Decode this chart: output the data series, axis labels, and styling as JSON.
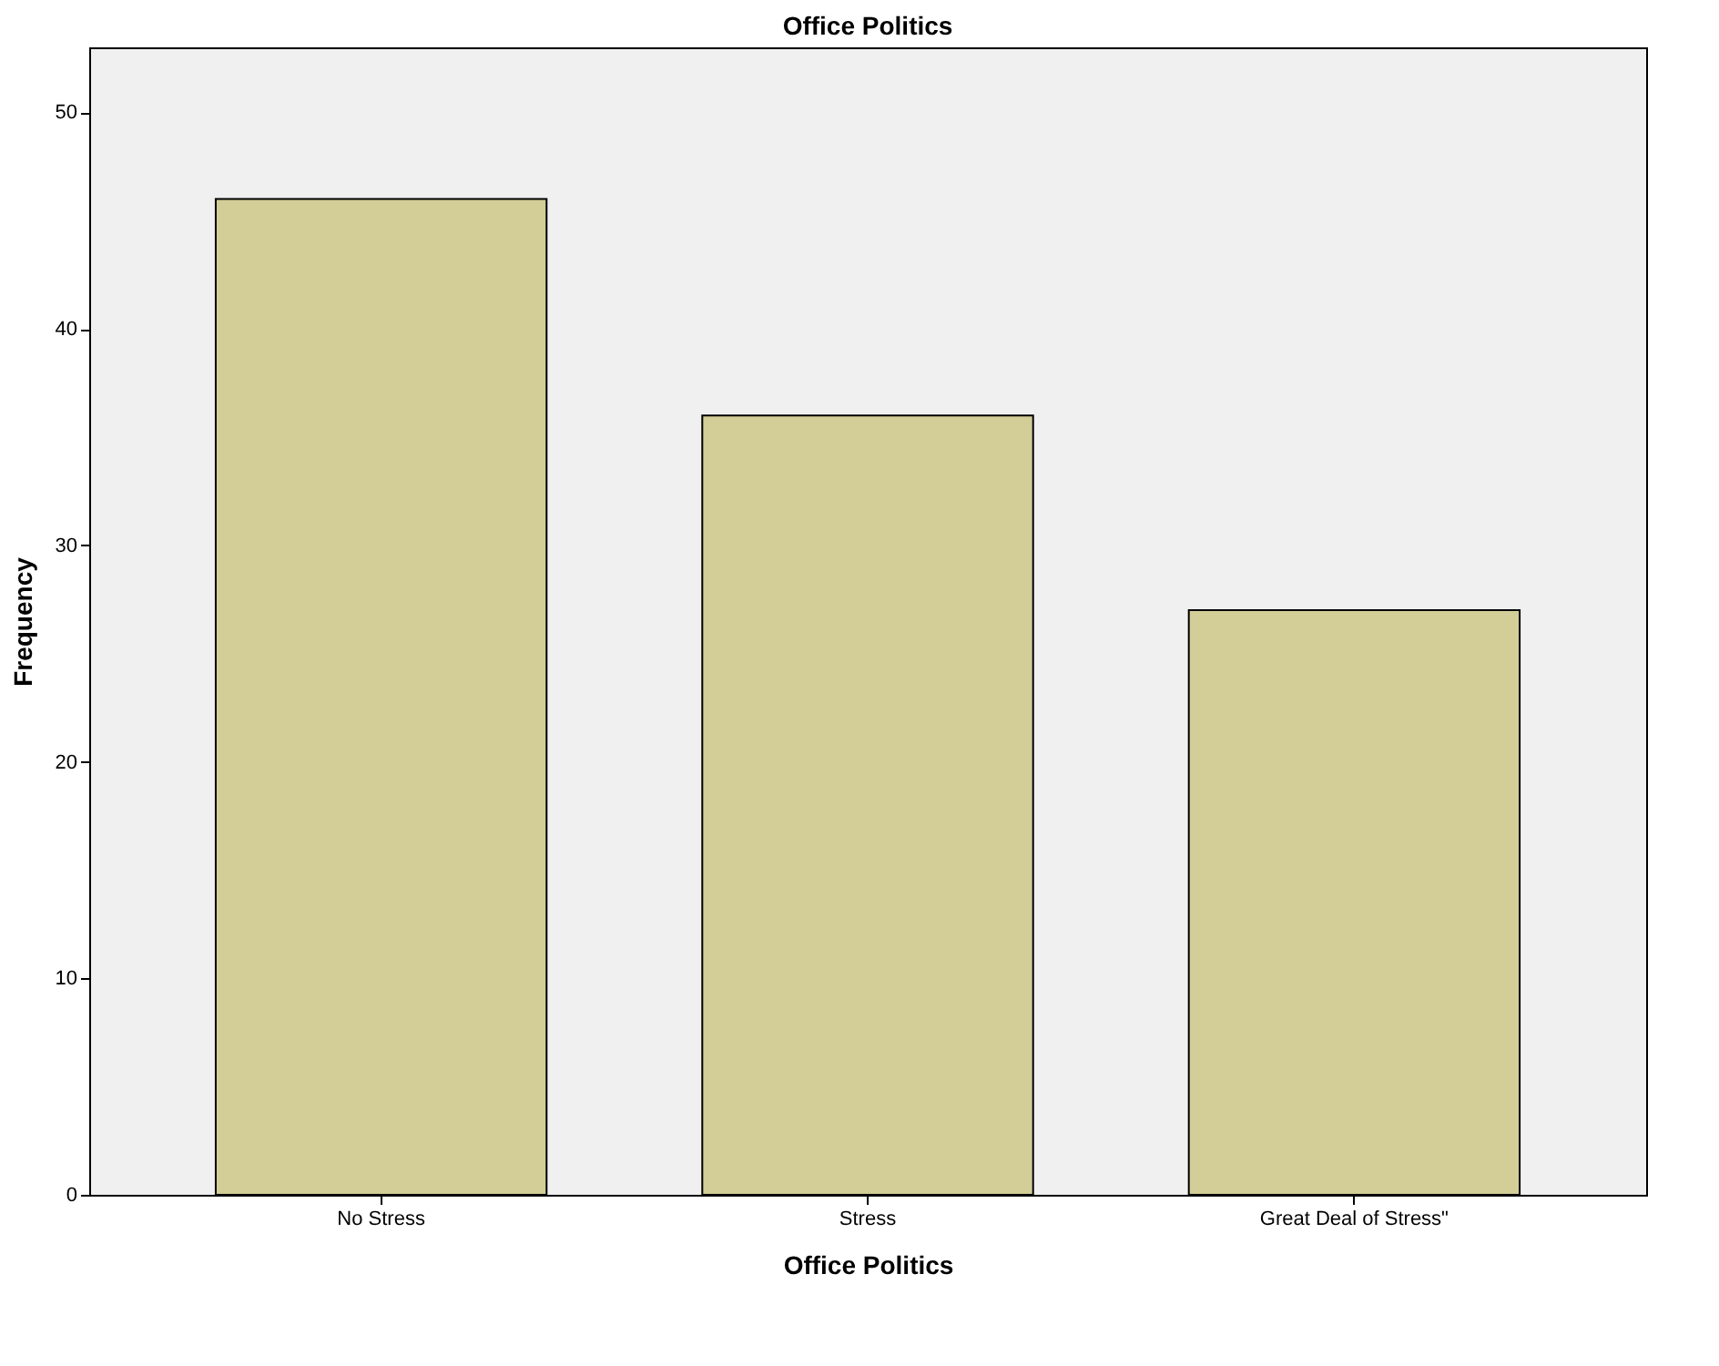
{
  "chart_data": {
    "type": "bar",
    "title": "Office Politics",
    "xlabel": "Office Politics",
    "ylabel": "Frequency",
    "categories": [
      "No Stress",
      "Stress",
      "Great Deal of Stress\""
    ],
    "values": [
      46,
      36,
      27
    ],
    "color": "#d3ce97",
    "ylim": [
      0,
      53
    ],
    "yticks": [
      0,
      10,
      20,
      30,
      40,
      50
    ],
    "grid": false
  }
}
